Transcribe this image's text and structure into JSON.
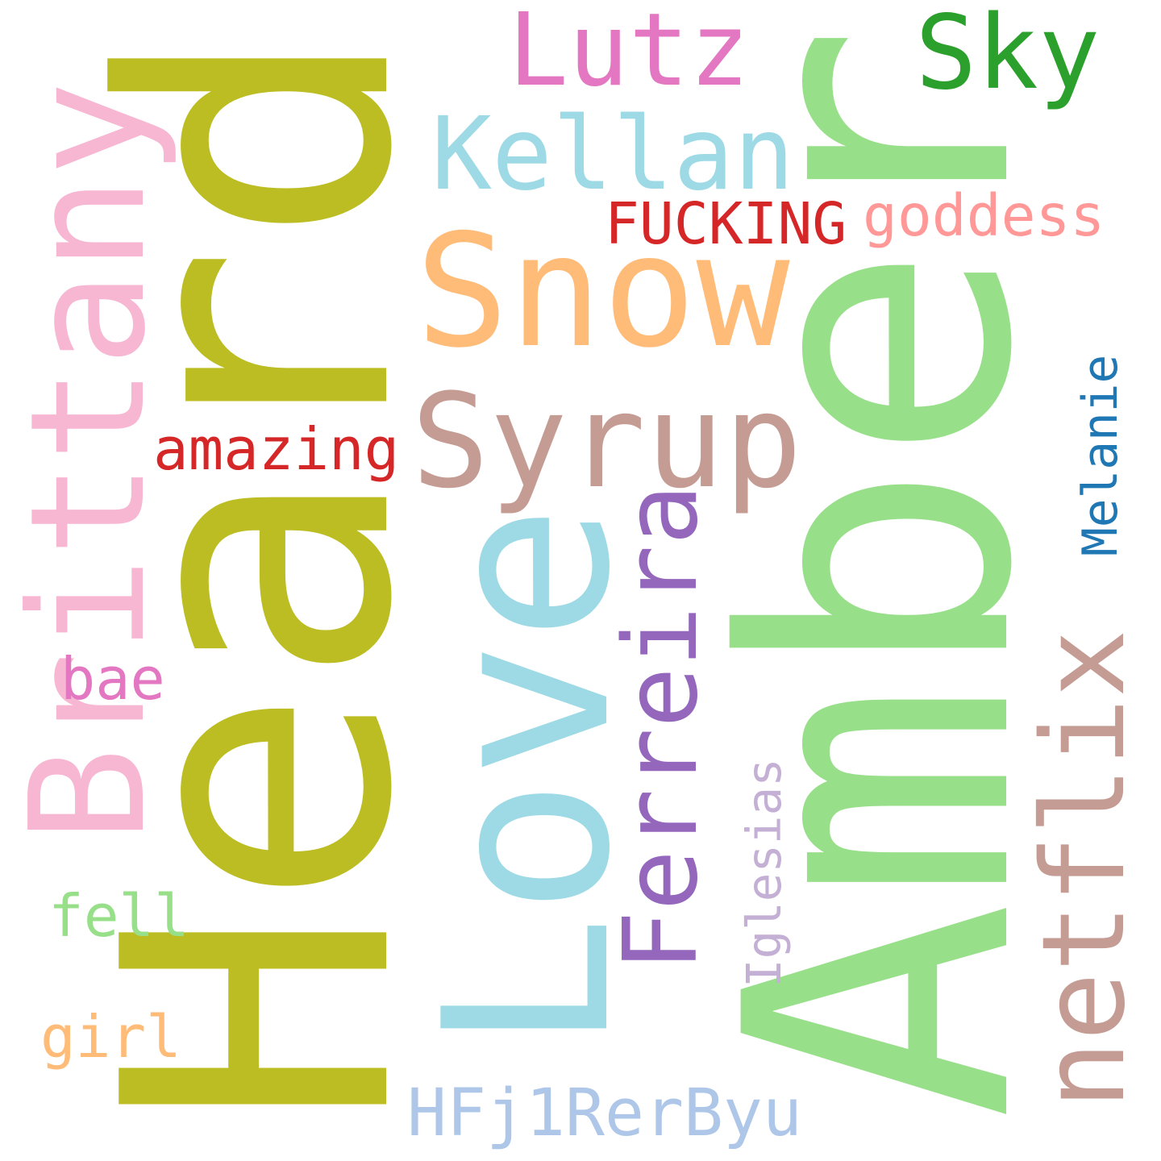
{
  "words": [
    {
      "text": "Amber",
      "color": "#98df8a",
      "orientation": "vertical"
    },
    {
      "text": "Heard",
      "color": "#bcbd22",
      "orientation": "vertical"
    },
    {
      "text": "Love",
      "color": "#9edae5",
      "orientation": "vertical"
    },
    {
      "text": "Brittany",
      "color": "#f7b6d2",
      "orientation": "vertical"
    },
    {
      "text": "Snow",
      "color": "#ffbb78",
      "orientation": "horizontal"
    },
    {
      "text": "Syrup",
      "color": "#c49c94",
      "orientation": "horizontal"
    },
    {
      "text": "netflix",
      "color": "#c49c94",
      "orientation": "vertical"
    },
    {
      "text": "Ferreira",
      "color": "#9467bd",
      "orientation": "vertical"
    },
    {
      "text": "Kellan",
      "color": "#9edae5",
      "orientation": "horizontal"
    },
    {
      "text": "Lutz",
      "color": "#e377c2",
      "orientation": "horizontal"
    },
    {
      "text": "Sky",
      "color": "#2ca02c",
      "orientation": "horizontal"
    },
    {
      "text": "HFj1RerByu",
      "color": "#aec7e8",
      "orientation": "horizontal"
    },
    {
      "text": "goddess",
      "color": "#ff9896",
      "orientation": "horizontal"
    },
    {
      "text": "FUCKING",
      "color": "#d62728",
      "orientation": "horizontal"
    },
    {
      "text": "amazing",
      "color": "#d62728",
      "orientation": "horizontal"
    },
    {
      "text": "Melanie",
      "color": "#1f77b4",
      "orientation": "vertical"
    },
    {
      "text": "Iglesias",
      "color": "#c5b0d5",
      "orientation": "vertical"
    },
    {
      "text": "bae",
      "color": "#e377c2",
      "orientation": "horizontal"
    },
    {
      "text": "fell",
      "color": "#98df8a",
      "orientation": "horizontal"
    },
    {
      "text": "girl",
      "color": "#ffbb78",
      "orientation": "horizontal"
    }
  ]
}
